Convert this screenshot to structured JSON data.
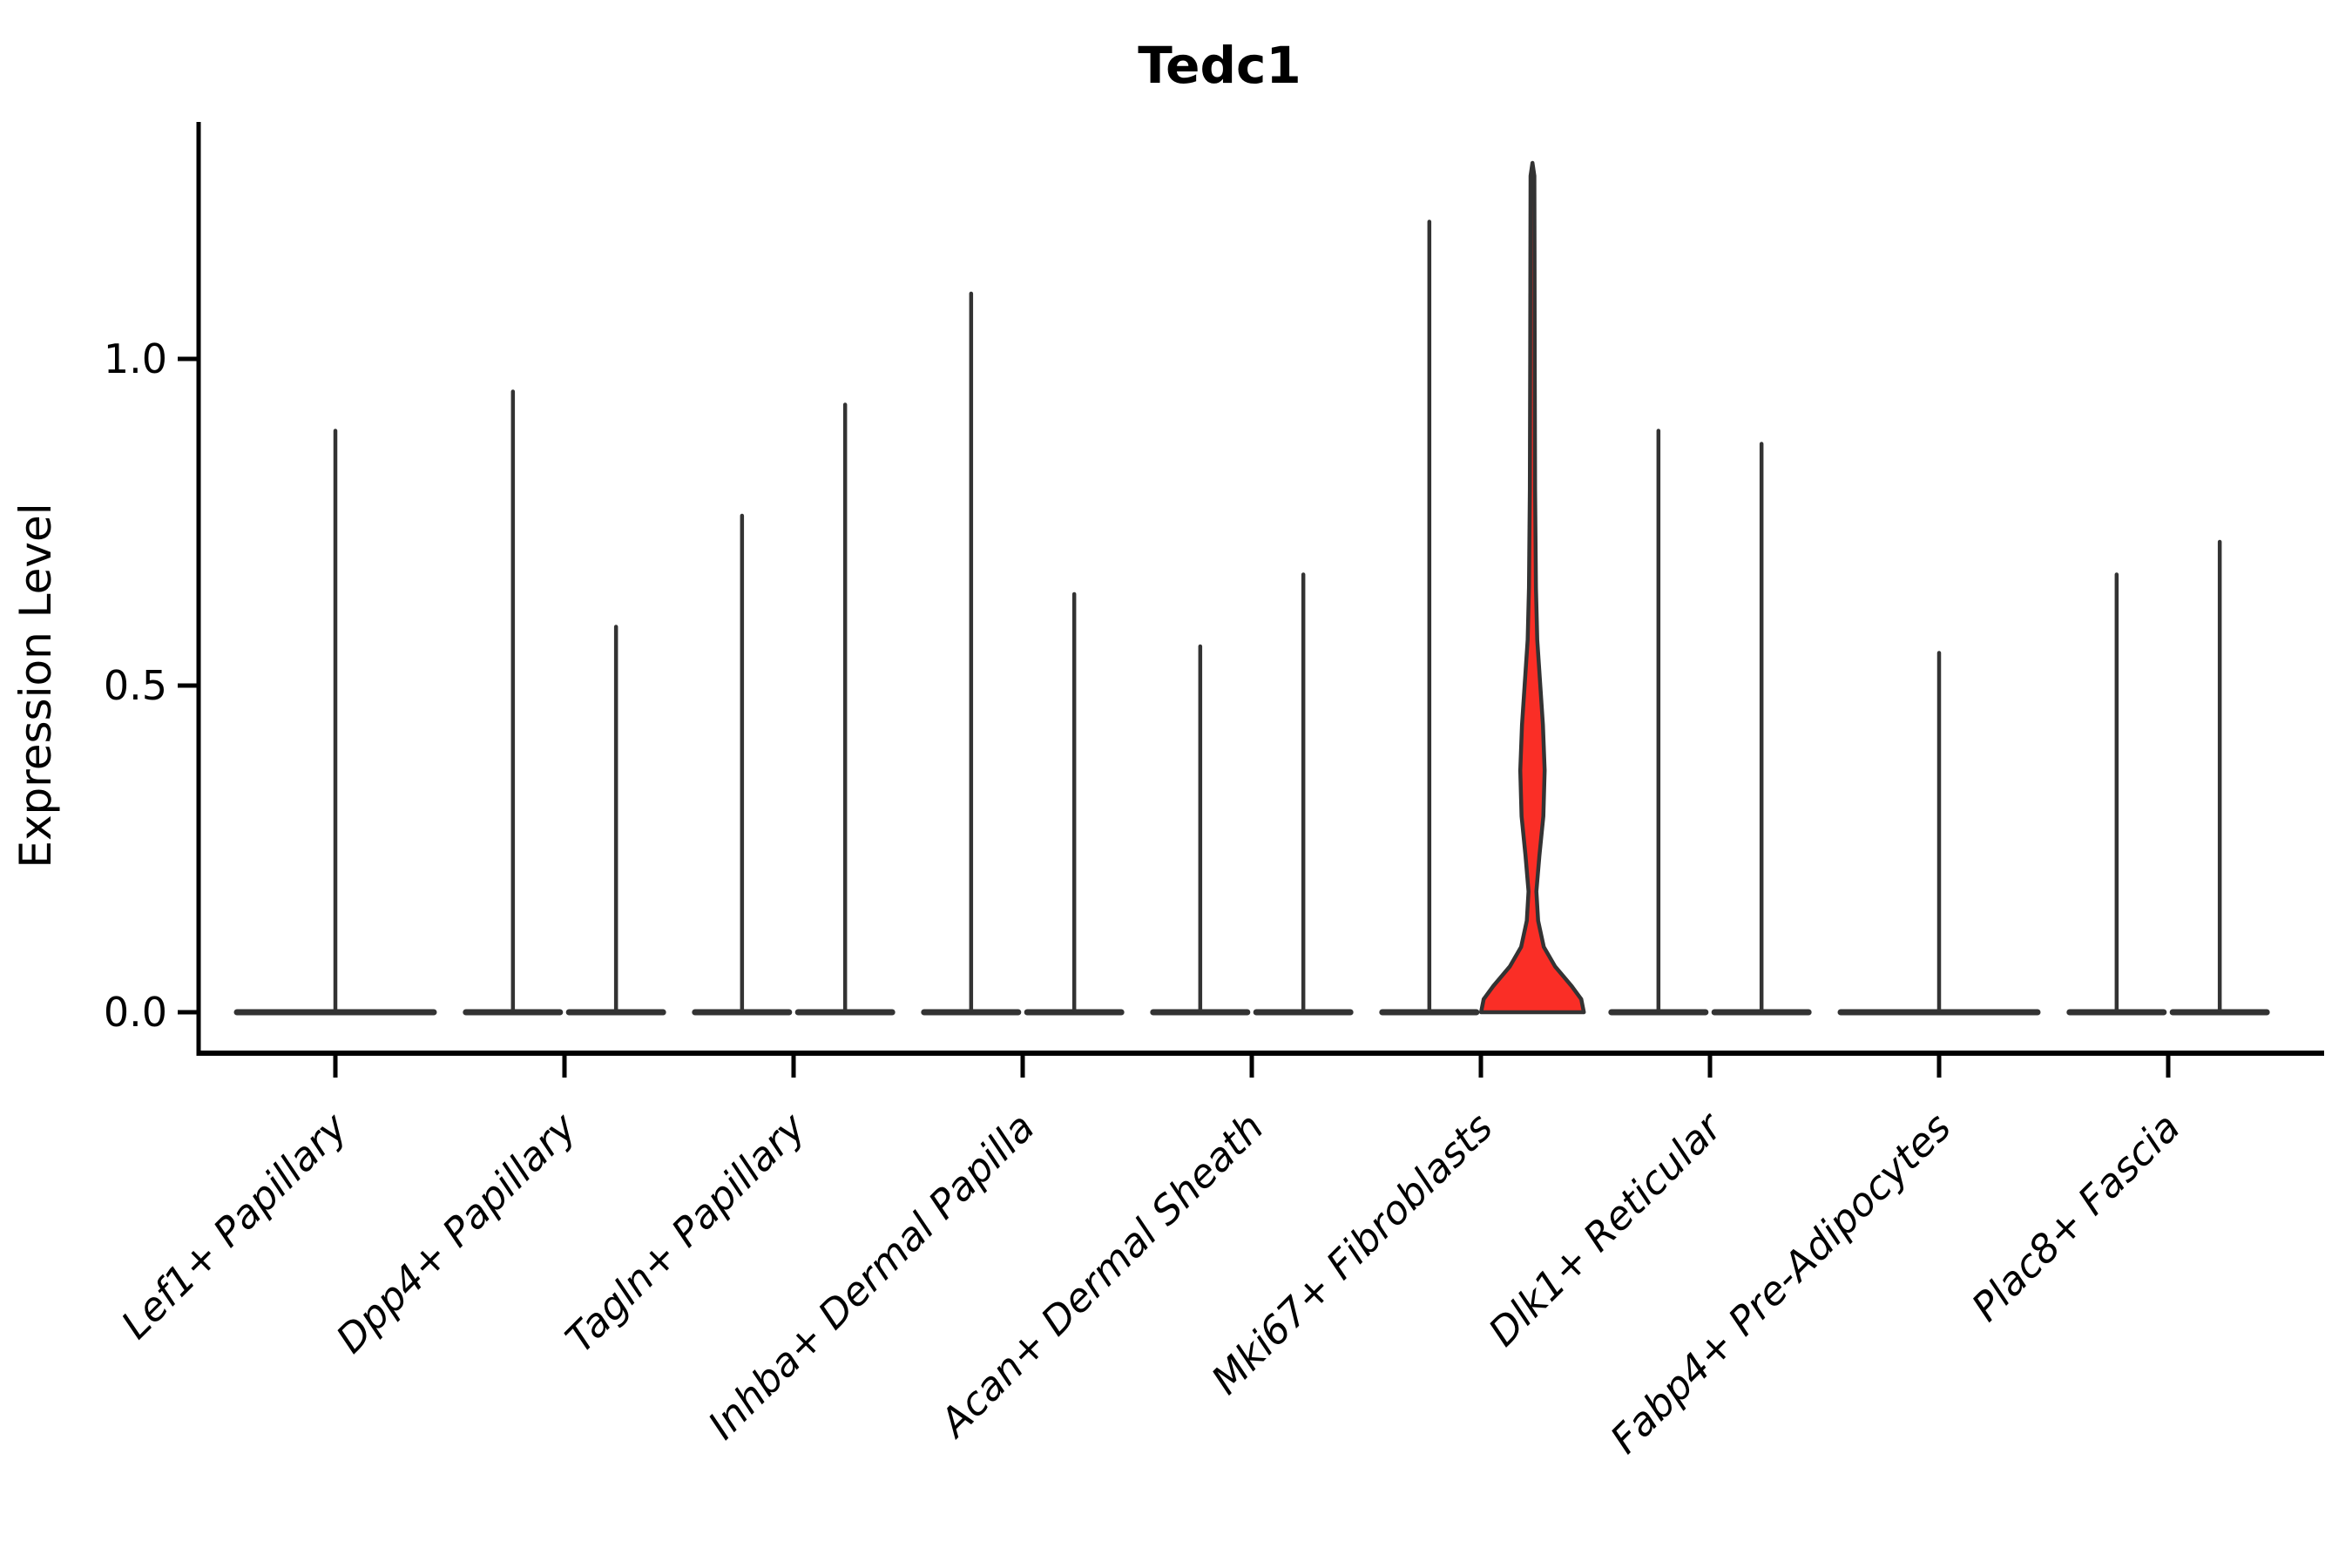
{
  "chart_data": {
    "type": "violin",
    "title": "Tedc1",
    "ylabel": "Expression Level",
    "xlabel": "",
    "yticks": [
      "0.0",
      "0.5",
      "1.0"
    ],
    "ytick_values": [
      0.0,
      0.5,
      1.0
    ],
    "ylim": [
      -0.06,
      1.36
    ],
    "grid": false,
    "legend": "none",
    "categories": [
      "Lef1+ Papillary",
      "Dpp4+ Papillary",
      "Tagln+ Papillary",
      "Inhba+ Dermal Papilla",
      "Acan+ Dermal Sheath",
      "Mki67+ Fibroblasts",
      "Dlk1+ Reticular",
      "Fabp4+ Pre-Adipocytes",
      "Plac8+ Fascia"
    ],
    "violins": [
      {
        "category_index": 0,
        "slot": "full",
        "max_expression": 0.89,
        "fill": "none"
      },
      {
        "category_index": 1,
        "slot": "left",
        "max_expression": 0.95,
        "fill": "none"
      },
      {
        "category_index": 1,
        "slot": "right",
        "max_expression": 0.59,
        "fill": "none"
      },
      {
        "category_index": 2,
        "slot": "left",
        "max_expression": 0.76,
        "fill": "none"
      },
      {
        "category_index": 2,
        "slot": "right",
        "max_expression": 0.93,
        "fill": "none"
      },
      {
        "category_index": 3,
        "slot": "left",
        "max_expression": 1.1,
        "fill": "none"
      },
      {
        "category_index": 3,
        "slot": "right",
        "max_expression": 0.64,
        "fill": "none"
      },
      {
        "category_index": 4,
        "slot": "left",
        "max_expression": 0.56,
        "fill": "none"
      },
      {
        "category_index": 4,
        "slot": "right",
        "max_expression": 0.67,
        "fill": "none"
      },
      {
        "category_index": 5,
        "slot": "left",
        "max_expression": 1.21,
        "fill": "none"
      },
      {
        "category_index": 5,
        "slot": "right",
        "max_expression": 1.3,
        "fill": "red",
        "profile_value_halfwidth": [
          [
            0.0,
            59
          ],
          [
            0.02,
            56
          ],
          [
            0.04,
            45
          ],
          [
            0.07,
            26
          ],
          [
            0.1,
            13
          ],
          [
            0.14,
            6.5
          ],
          [
            0.185,
            4.5
          ],
          [
            0.24,
            8
          ],
          [
            0.3,
            12.5
          ],
          [
            0.37,
            14
          ],
          [
            0.44,
            12
          ],
          [
            0.5,
            9
          ],
          [
            0.57,
            5.5
          ],
          [
            0.65,
            4
          ],
          [
            0.8,
            3
          ],
          [
            1.0,
            2.6
          ],
          [
            1.15,
            2.4
          ],
          [
            1.28,
            2.2
          ],
          [
            1.3,
            0
          ]
        ]
      },
      {
        "category_index": 6,
        "slot": "left",
        "max_expression": 0.89,
        "fill": "none"
      },
      {
        "category_index": 6,
        "slot": "right",
        "max_expression": 0.87,
        "fill": "none"
      },
      {
        "category_index": 7,
        "slot": "full",
        "max_expression": 0.55,
        "fill": "none"
      },
      {
        "category_index": 8,
        "slot": "left",
        "max_expression": 0.67,
        "fill": "none"
      },
      {
        "category_index": 8,
        "slot": "right",
        "max_expression": 0.72,
        "fill": "none"
      }
    ],
    "colors": {
      "violin_outline": "#333333",
      "highlight_fill": "#fa2e26",
      "axis": "#000000",
      "text": "#000000",
      "background": "#ffffff"
    }
  }
}
